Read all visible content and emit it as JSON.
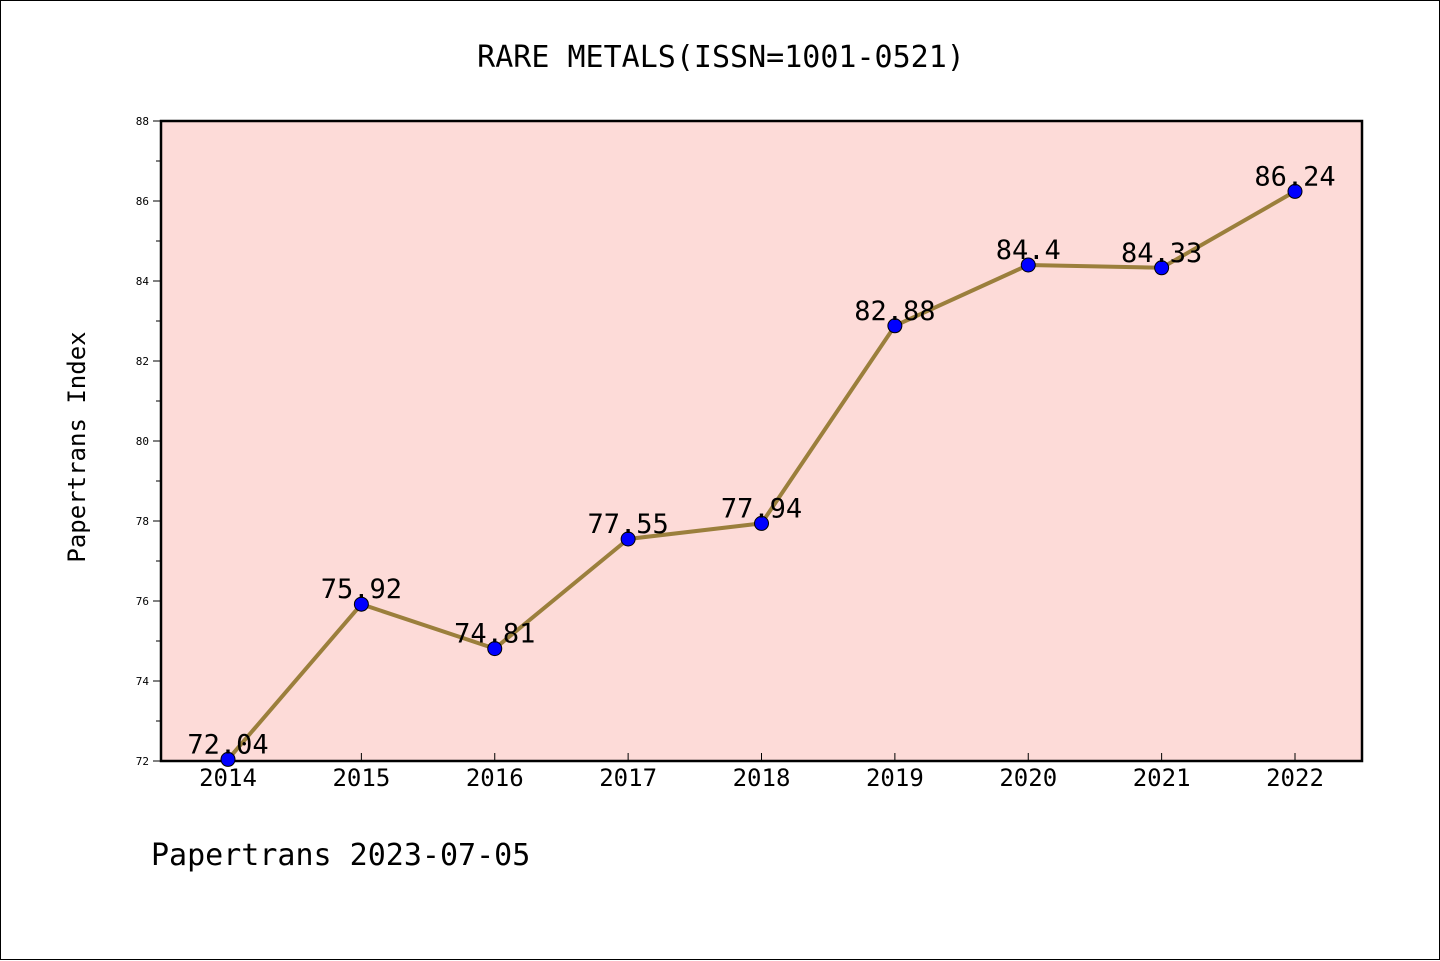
{
  "chart_data": {
    "type": "line",
    "title": "RARE METALS(ISSN=1001-0521)",
    "xlabel": "",
    "ylabel": "Papertrans Index",
    "categories": [
      "2014",
      "2015",
      "2016",
      "2017",
      "2018",
      "2019",
      "2020",
      "2021",
      "2022"
    ],
    "values": [
      72.04,
      75.92,
      74.81,
      77.55,
      77.94,
      82.88,
      84.4,
      84.33,
      86.24
    ],
    "data_labels": [
      "72.04",
      "75.92",
      "74.81",
      "77.55",
      "77.94",
      "82.88",
      "84.4",
      "84.33",
      "86.24"
    ],
    "ylim": [
      72,
      88
    ],
    "yticks": [
      "72",
      "74",
      "76",
      "78",
      "80",
      "82",
      "84",
      "86",
      "88"
    ],
    "grid": false,
    "colors": {
      "line": "#9b7f3c",
      "marker": "#0000ff",
      "plot_background": "#fddbd8"
    }
  },
  "footer": "Papertrans 2023-07-05"
}
